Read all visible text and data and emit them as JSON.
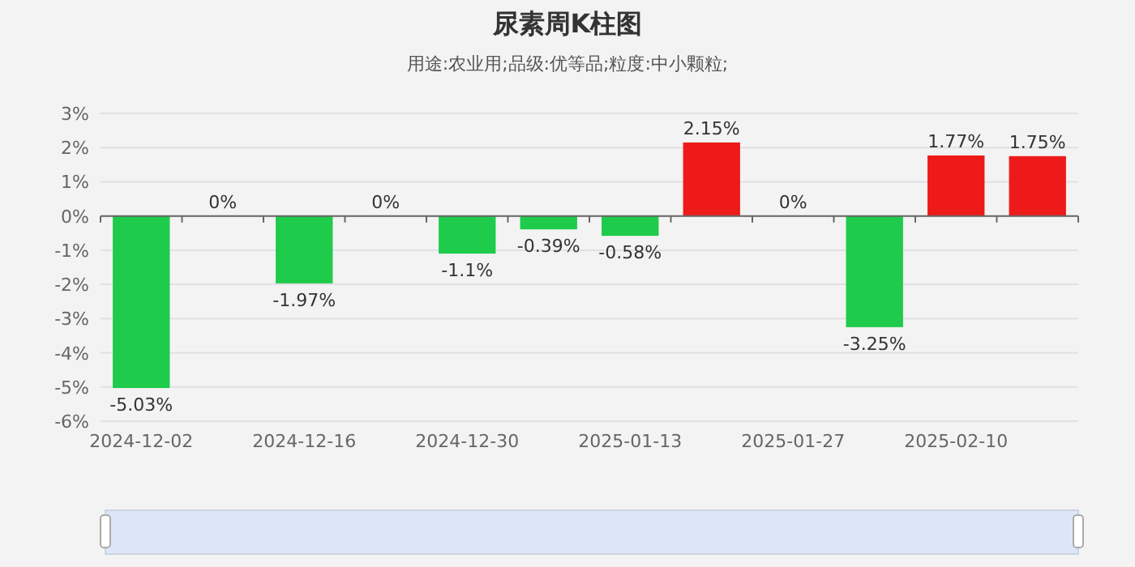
{
  "chart_data": {
    "type": "bar",
    "title": "尿素周K柱图",
    "subtitle": "用途:农业用;品级:优等品;粒度:中小颗粒;",
    "categories": [
      "2024-12-02",
      null,
      "2024-12-16",
      null,
      "2024-12-30",
      null,
      "2025-01-13",
      null,
      "2025-01-27",
      null,
      "2025-02-10",
      null
    ],
    "values": [
      -5.03,
      0,
      -1.97,
      0,
      -1.1,
      -0.39,
      -0.58,
      2.15,
      0,
      -3.25,
      1.77,
      1.75
    ],
    "colors": [
      "#1ecb4a",
      "#1ecb4a",
      "#1ecb4a",
      "#1ecb4a",
      "#1ecb4a",
      "#1ecb4a",
      "#1ecb4a",
      "#ee1a1a",
      "#1ecb4a",
      "#1ecb4a",
      "#ee1a1a",
      "#ee1a1a"
    ],
    "value_labels": [
      "-5.03%",
      "0%",
      "-1.97%",
      "0%",
      "-1.1%",
      "-0.39%",
      "-0.58%",
      "2.15%",
      "0%",
      "-3.25%",
      "1.77%",
      "1.75%"
    ],
    "ylim": [
      -6,
      3
    ],
    "yticks": [
      {
        "value": -6,
        "label": "-6%"
      },
      {
        "value": -5,
        "label": "-5%"
      },
      {
        "value": -4,
        "label": "-4%"
      },
      {
        "value": -3,
        "label": "-3%"
      },
      {
        "value": -2,
        "label": "-2%"
      },
      {
        "value": -1,
        "label": "-1%"
      },
      {
        "value": 0,
        "label": "0%"
      },
      {
        "value": 1,
        "label": "1%"
      },
      {
        "value": 2,
        "label": "2%"
      },
      {
        "value": 3,
        "label": "3%"
      }
    ],
    "grid": "y"
  }
}
